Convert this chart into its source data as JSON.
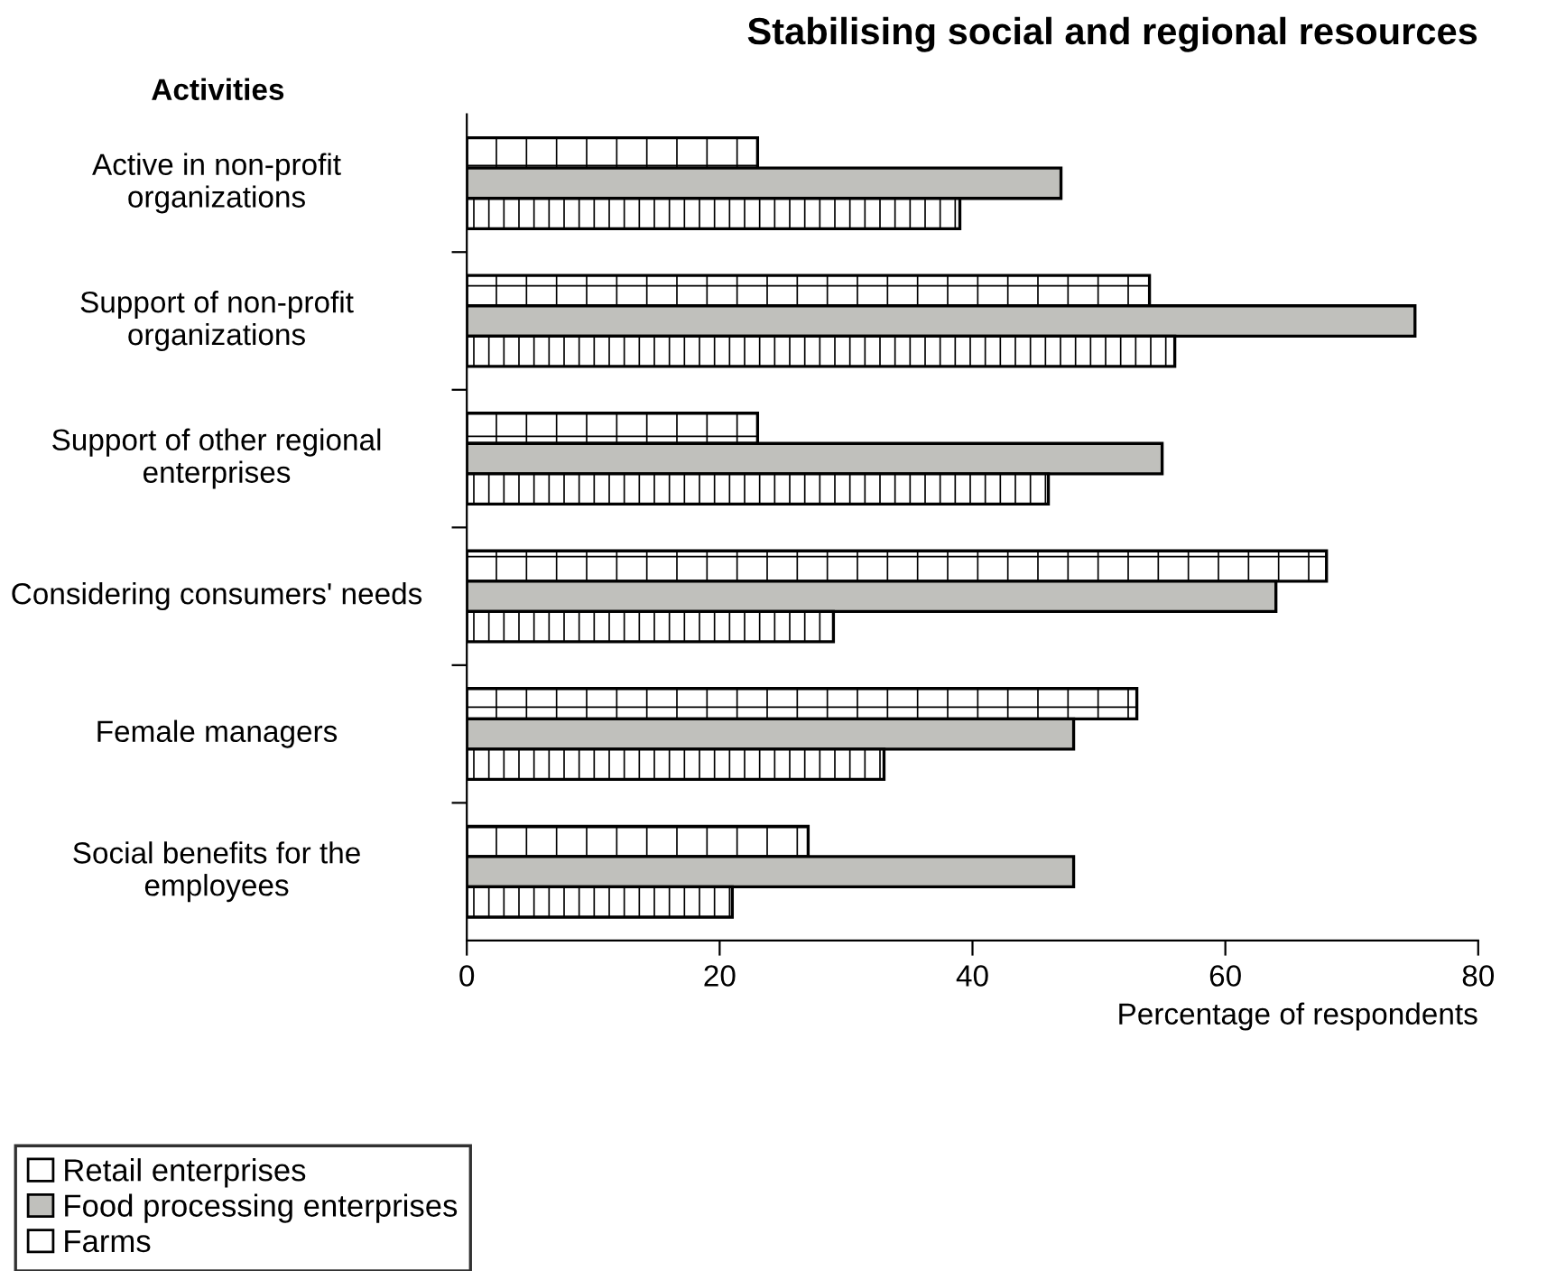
{
  "chart_data": {
    "type": "bar",
    "orientation": "horizontal",
    "title": "Stabilising social and regional resources",
    "ylabel": "Activities",
    "xlabel": "Percentage of respondents",
    "categories": [
      "Active in non-profit organizations",
      "Support of non-profit organizations",
      "Support of other regional enterprises",
      "Considering consumers' needs",
      "Female managers",
      "Social benefits for the employees"
    ],
    "series": [
      {
        "name": "Retail enterprises",
        "color": "#ffffff",
        "values": [
          23,
          54,
          23,
          68,
          53,
          27
        ]
      },
      {
        "name": "Food processing enterprises",
        "color": "#c0c0bc",
        "values": [
          47,
          75,
          55,
          64,
          48,
          48
        ]
      },
      {
        "name": "Farms",
        "color": "#ffffff",
        "values": [
          39,
          56,
          46,
          29,
          33,
          21
        ]
      }
    ],
    "xlim": [
      0,
      80
    ],
    "xticks": [
      0,
      20,
      40,
      60,
      80
    ],
    "grid": false,
    "legend": "bottom left"
  }
}
